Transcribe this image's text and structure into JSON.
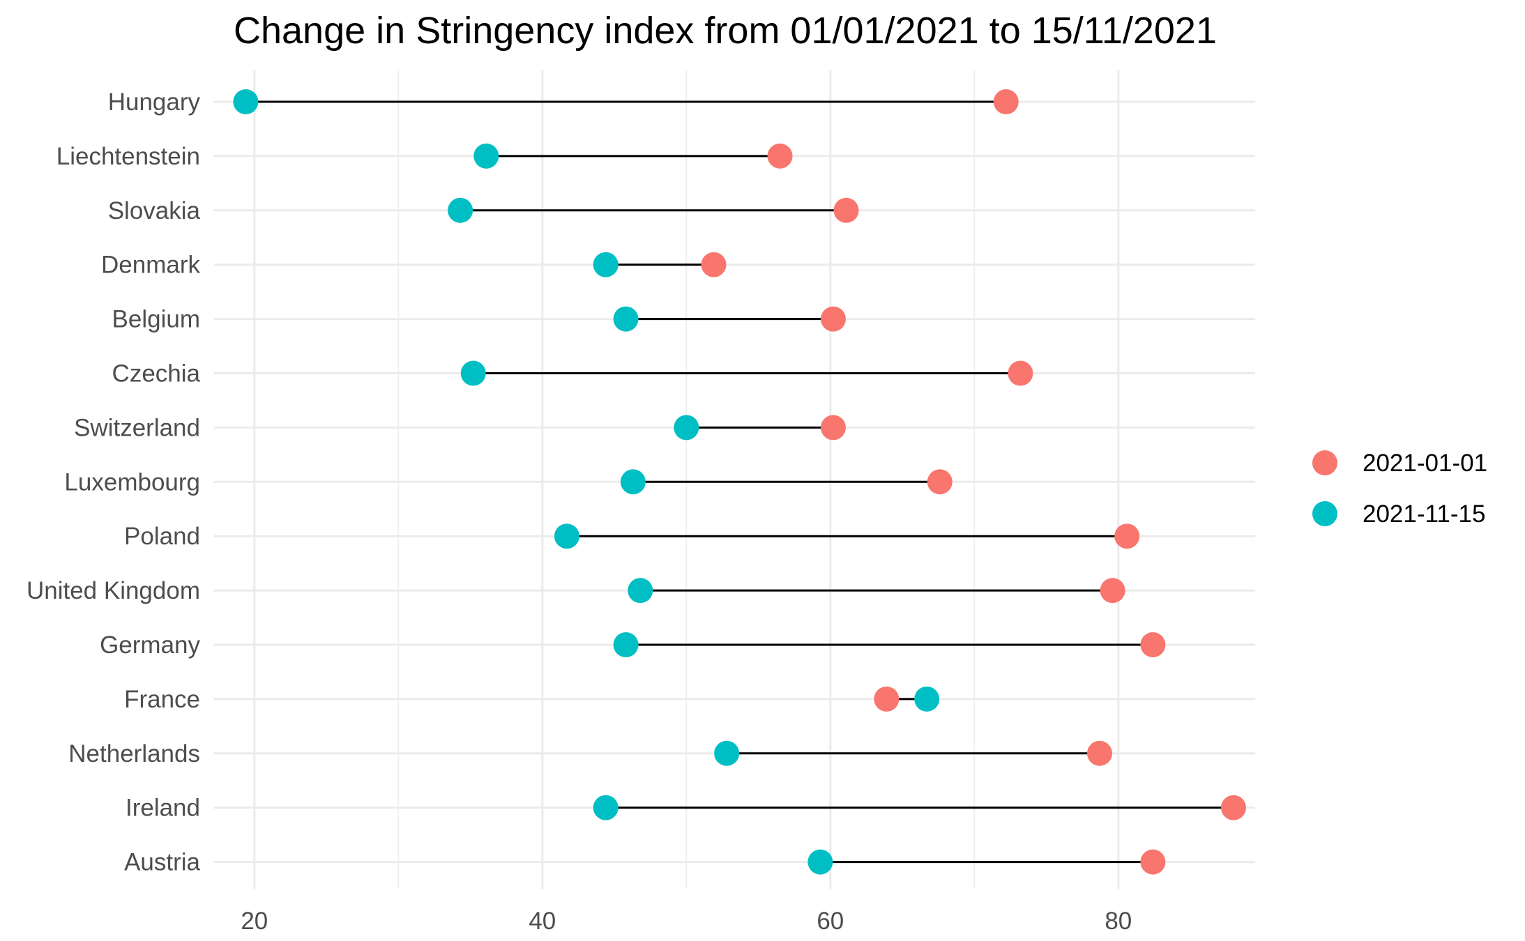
{
  "chart_data": {
    "type": "dumbbell",
    "title": "Change in Stringency index from 01/01/2021 to 15/11/2021",
    "xlabel": "",
    "ylabel": "",
    "xlim": [
      17.2,
      89.5
    ],
    "x_ticks": [
      20,
      40,
      60,
      80
    ],
    "grid": true,
    "legend_position": "right",
    "categories": [
      "Hungary",
      "Liechtenstein",
      "Slovakia",
      "Denmark",
      "Belgium",
      "Czechia",
      "Switzerland",
      "Luxembourg",
      "Poland",
      "United Kingdom",
      "Germany",
      "France",
      "Netherlands",
      "Ireland",
      "Austria"
    ],
    "series": [
      {
        "name": "2021-01-01",
        "color": "#F8766D",
        "values": [
          72.2,
          56.5,
          61.1,
          51.9,
          60.2,
          73.2,
          60.2,
          67.6,
          80.6,
          79.6,
          82.4,
          63.9,
          78.7,
          88.0,
          82.4
        ]
      },
      {
        "name": "2021-11-15",
        "color": "#00BFC4",
        "values": [
          19.4,
          36.1,
          34.3,
          44.4,
          45.8,
          35.2,
          50.0,
          46.3,
          41.7,
          46.8,
          45.8,
          66.7,
          52.8,
          44.4,
          59.3
        ]
      }
    ]
  }
}
